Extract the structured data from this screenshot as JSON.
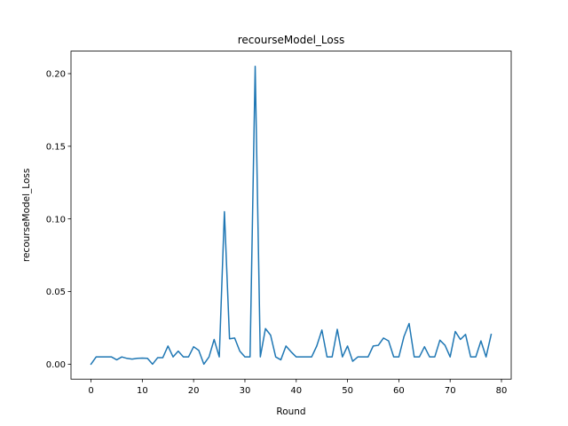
{
  "chart_data": {
    "type": "line",
    "title": "recourseModel_Loss",
    "xlabel": "Round",
    "ylabel": "recourseModel_Loss",
    "xlim": [
      -3.9,
      81.9
    ],
    "ylim": [
      -0.0103,
      0.2155
    ],
    "xticks": [
      0,
      10,
      20,
      30,
      40,
      50,
      60,
      70,
      80
    ],
    "xtick_labels": [
      "0",
      "10",
      "20",
      "30",
      "40",
      "50",
      "60",
      "70",
      "80"
    ],
    "yticks": [
      0.0,
      0.05,
      0.1,
      0.15,
      0.2
    ],
    "ytick_labels": [
      "0.00",
      "0.05",
      "0.10",
      "0.15",
      "0.20"
    ],
    "grid": false,
    "series": [
      {
        "color": "#1f77b4",
        "x": [
          0,
          1,
          2,
          3,
          4,
          5,
          6,
          7,
          8,
          9,
          10,
          11,
          12,
          13,
          14,
          15,
          16,
          17,
          18,
          19,
          20,
          21,
          22,
          23,
          24,
          25,
          26,
          27,
          28,
          29,
          30,
          31,
          32,
          33,
          34,
          35,
          36,
          37,
          38,
          39,
          40,
          41,
          42,
          43,
          44,
          45,
          46,
          47,
          48,
          49,
          50,
          51,
          52,
          53,
          54,
          55,
          56,
          57,
          58,
          59,
          60,
          61,
          62,
          63,
          64,
          65,
          66,
          67,
          68,
          69,
          70,
          71,
          72,
          73,
          74,
          75,
          76,
          77,
          78
        ],
        "values": [
          0.0,
          0.005,
          0.005,
          0.005,
          0.005,
          0.003,
          0.005,
          0.004,
          0.0035,
          0.004,
          0.0042,
          0.004,
          0.0,
          0.0045,
          0.0045,
          0.0125,
          0.005,
          0.009,
          0.005,
          0.005,
          0.012,
          0.0095,
          0.0,
          0.005,
          0.017,
          0.005,
          0.105,
          0.0175,
          0.018,
          0.009,
          0.005,
          0.005,
          0.205,
          0.005,
          0.0245,
          0.02,
          0.005,
          0.003,
          0.0125,
          0.0085,
          0.005,
          0.005,
          0.005,
          0.005,
          0.0125,
          0.0235,
          0.005,
          0.005,
          0.024,
          0.005,
          0.0125,
          0.002,
          0.005,
          0.005,
          0.005,
          0.0125,
          0.013,
          0.018,
          0.016,
          0.005,
          0.005,
          0.019,
          0.028,
          0.005,
          0.005,
          0.012,
          0.005,
          0.005,
          0.0165,
          0.013,
          0.005,
          0.0225,
          0.017,
          0.0205,
          0.005,
          0.005,
          0.016,
          0.005,
          0.0205
        ]
      }
    ]
  }
}
